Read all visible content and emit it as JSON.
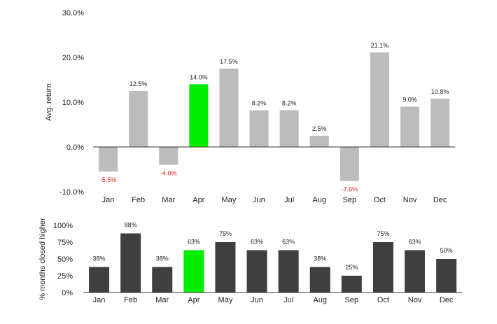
{
  "chart_data": [
    {
      "type": "bar",
      "categories": [
        "Jan",
        "Feb",
        "Mar",
        "Apr",
        "May",
        "Jun",
        "Jul",
        "Aug",
        "Sep",
        "Oct",
        "Nov",
        "Dec"
      ],
      "values": [
        -5.5,
        12.5,
        -4.0,
        14.0,
        17.5,
        8.2,
        8.2,
        2.5,
        -7.6,
        21.1,
        9.0,
        10.8
      ],
      "data_labels": [
        "-5.5%",
        "12.5%",
        "-4.0%",
        "14.0%",
        "17.5%",
        "8.2%",
        "8.2%",
        "2.5%",
        "-7.6%",
        "21.1%",
        "9.0%",
        "10.8%"
      ],
      "ylabel": "Avg. return",
      "ylim": [
        -10,
        30
      ],
      "yticks": [
        30,
        20,
        10,
        0,
        -10
      ],
      "ytick_labels": [
        "30.0%",
        "20.0%",
        "10.0%",
        "0.0%",
        "-10.0%"
      ],
      "highlight_index": 3,
      "colors": {
        "bar": "#bcbcbc",
        "highlight": "#00ee00",
        "negative_label": "#e02020",
        "label": "#222222",
        "axis": "#333333"
      },
      "grid": false
    },
    {
      "type": "bar",
      "categories": [
        "Jan",
        "Feb",
        "Mar",
        "Apr",
        "May",
        "Jun",
        "Jul",
        "Aug",
        "Sep",
        "Oct",
        "Nov",
        "Dec"
      ],
      "values": [
        38,
        88,
        38,
        63,
        75,
        63,
        63,
        38,
        25,
        75,
        63,
        50
      ],
      "data_labels": [
        "38%",
        "88%",
        "38%",
        "63%",
        "75%",
        "63%",
        "63%",
        "38%",
        "25%",
        "75%",
        "63%",
        "50%"
      ],
      "ylabel": "% months closed higher",
      "ylim": [
        0,
        100
      ],
      "yticks": [
        100,
        75,
        50,
        25,
        0
      ],
      "ytick_labels": [
        "100%",
        "75%",
        "50%",
        "25%",
        "0%"
      ],
      "highlight_index": 3,
      "colors": {
        "bar": "#3f3f3f",
        "highlight": "#00ee00",
        "label": "#222222",
        "axis": "#333333"
      },
      "grid": false
    }
  ]
}
